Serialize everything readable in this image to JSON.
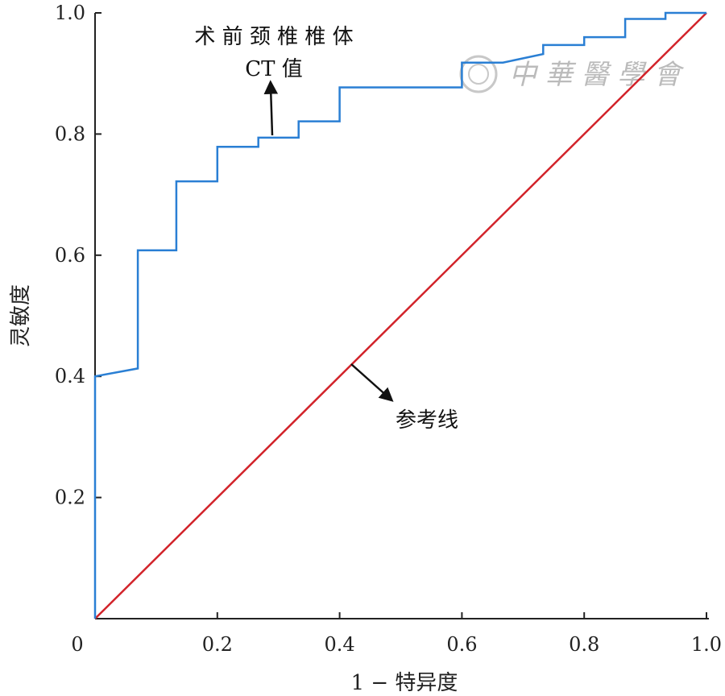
{
  "chart_data": {
    "type": "line",
    "title": "",
    "xlabel": "1 − 特异度",
    "ylabel": "灵敏度",
    "xlim": [
      0,
      1
    ],
    "ylim": [
      0,
      1
    ],
    "x_ticks": [
      "0",
      "0.2",
      "0.4",
      "0.6",
      "0.8",
      "1.0"
    ],
    "y_ticks": [
      "0.2",
      "0.4",
      "0.6",
      "0.8",
      "1.0"
    ],
    "grid": false,
    "series": [
      {
        "name": "",
        "color": "#2a7fd4",
        "style": "step",
        "points": [
          [
            0,
            0
          ],
          [
            0,
            0.4
          ],
          [
            0.07,
            0.413
          ],
          [
            0.07,
            0.608
          ],
          [
            0.133,
            0.608
          ],
          [
            0.133,
            0.722
          ],
          [
            0.2,
            0.722
          ],
          [
            0.2,
            0.779
          ],
          [
            0.267,
            0.779
          ],
          [
            0.267,
            0.794
          ],
          [
            0.333,
            0.794
          ],
          [
            0.333,
            0.821
          ],
          [
            0.4,
            0.821
          ],
          [
            0.4,
            0.877
          ],
          [
            0.6,
            0.877
          ],
          [
            0.6,
            0.918
          ],
          [
            0.667,
            0.918
          ],
          [
            0.733,
            0.932
          ],
          [
            0.733,
            0.947
          ],
          [
            0.8,
            0.947
          ],
          [
            0.8,
            0.96
          ],
          [
            0.867,
            0.96
          ],
          [
            0.867,
            0.99
          ],
          [
            0.933,
            0.99
          ],
          [
            0.933,
            1.0
          ],
          [
            1.0,
            1.0
          ]
        ]
      },
      {
        "name": "",
        "color": "#d2232a",
        "style": "line",
        "points": [
          [
            0,
            0
          ],
          [
            1,
            1
          ]
        ]
      }
    ],
    "annotations": [
      {
        "lines": [
          "术 前 颈 椎 椎 体",
          "CT 值"
        ],
        "target": "roc-curve"
      },
      {
        "lines": [
          "参考线"
        ],
        "target": "reference-line"
      }
    ]
  },
  "watermark": {
    "text": "中 華 醫 學 會"
  }
}
